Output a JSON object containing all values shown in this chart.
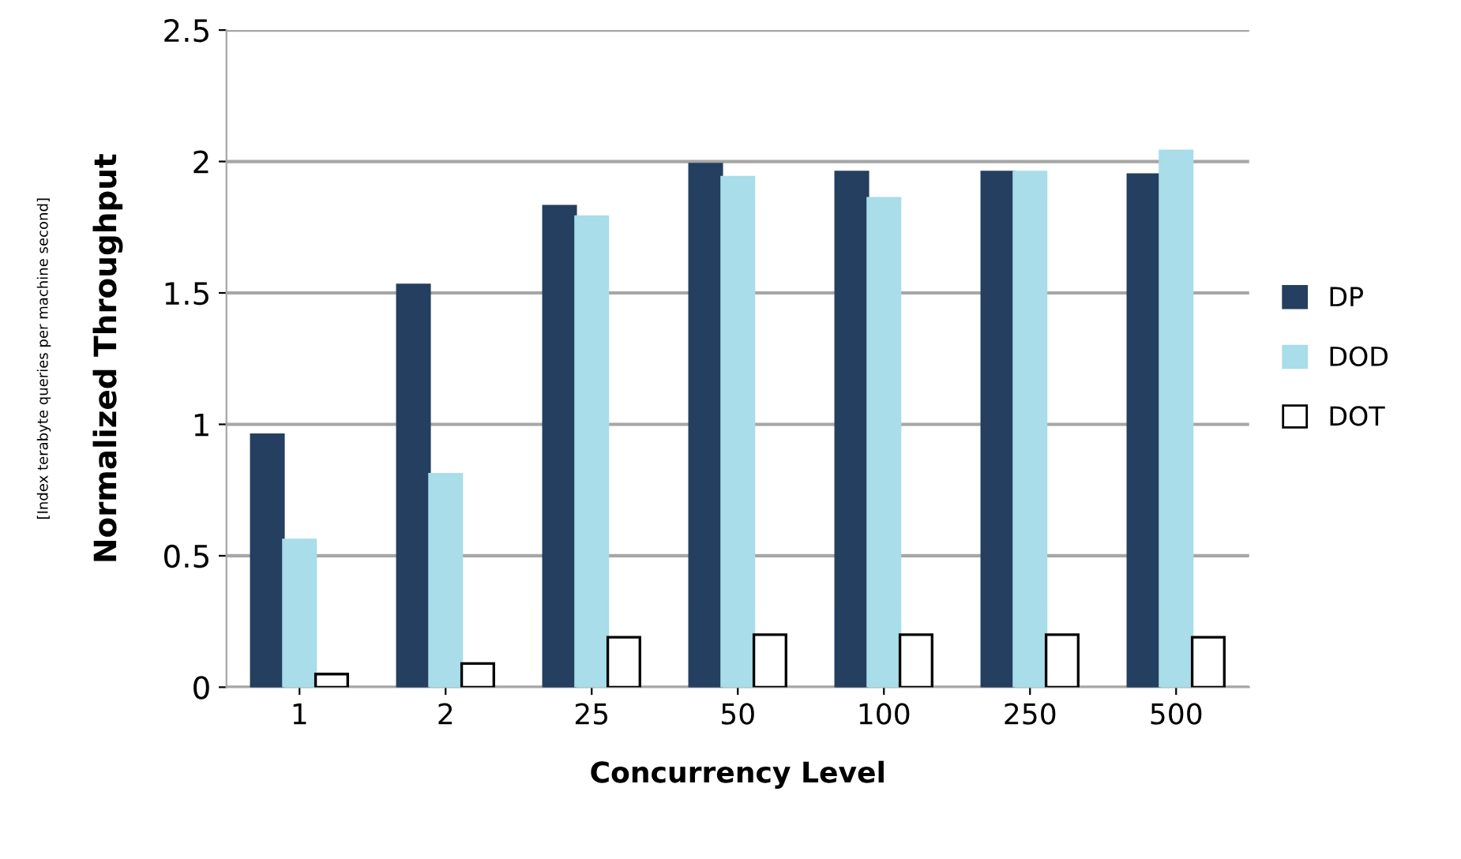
{
  "chart_data": {
    "type": "bar",
    "ylabel": "Normalized Throughput",
    "subtitle": "[Index terabyte queries per machine second]",
    "xlabel": "Concurrency Level",
    "categories": [
      "1",
      "2",
      "25",
      "50",
      "100",
      "250",
      "500"
    ],
    "series": [
      {
        "name": "DP",
        "color": "#243f60",
        "values": [
          0.96,
          1.53,
          1.83,
          1.99,
          1.96,
          1.96,
          1.95
        ]
      },
      {
        "name": "DOD",
        "color": "#a8dde9",
        "values": [
          0.56,
          0.81,
          1.79,
          1.94,
          1.86,
          1.96,
          2.04
        ]
      },
      {
        "name": "DOT",
        "color": "#ffffff",
        "values": [
          0.05,
          0.09,
          0.19,
          0.2,
          0.2,
          0.2,
          0.19
        ]
      }
    ],
    "ylim": [
      0,
      2.5
    ],
    "yticks": [
      0,
      0.5,
      1,
      1.5,
      2,
      2.5
    ],
    "grid": "y",
    "legend": "right"
  }
}
